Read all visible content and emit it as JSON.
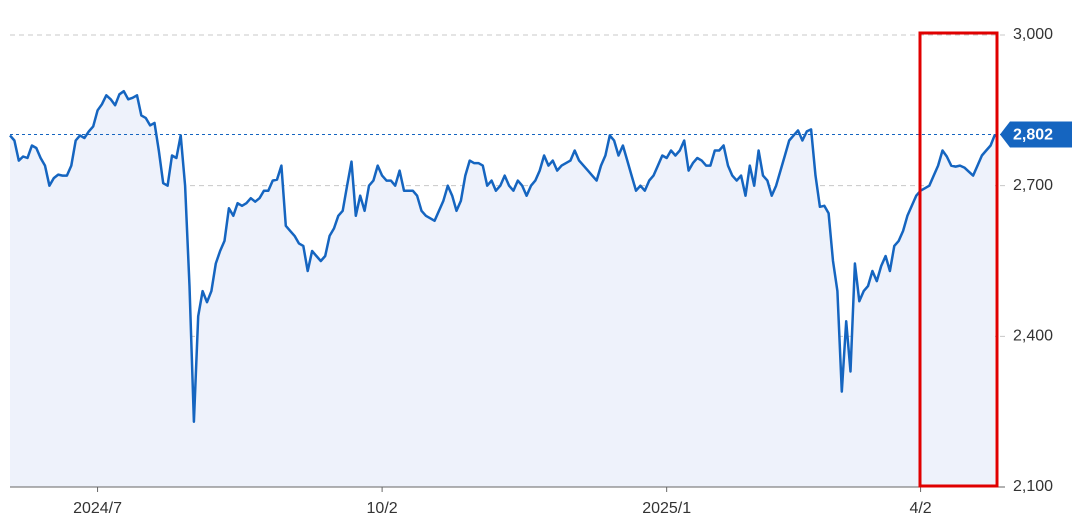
{
  "chart_data": {
    "type": "area",
    "title": "",
    "xlabel": "",
    "ylabel": "",
    "x_tick_labels": [
      "2024/7",
      "10/2",
      "2025/1",
      "4/2"
    ],
    "y_tick_labels": [
      "3,000",
      "2,700",
      "2,400",
      "2,100"
    ],
    "y_ticks": [
      3000,
      2700,
      2400,
      2100
    ],
    "ylim": [
      2100,
      3000
    ],
    "grid": true,
    "current_value": 2802,
    "current_value_label": "2,802",
    "colors": {
      "line": "#1565c0",
      "fill": "#eef2fb",
      "grid": "#c8c8c8",
      "reference_line": "#1565c0",
      "badge": "#1565c0",
      "highlight_box": "#e00000"
    },
    "highlight": {
      "shape": "rectangle",
      "covers": "most recent period (late April to end of series)"
    },
    "series": [
      {
        "values": [
          2800,
          2790,
          2750,
          2758,
          2755,
          2780,
          2775,
          2755,
          2740,
          2700,
          2715,
          2722,
          2720,
          2720,
          2740,
          2790,
          2800,
          2795,
          2808,
          2818,
          2850,
          2862,
          2880,
          2872,
          2860,
          2882,
          2888,
          2872,
          2875,
          2880,
          2840,
          2835,
          2820,
          2825,
          2770,
          2705,
          2700,
          2760,
          2755,
          2800,
          2700,
          2500,
          2230,
          2440,
          2490,
          2468,
          2490,
          2545,
          2570,
          2590,
          2655,
          2640,
          2665,
          2660,
          2665,
          2675,
          2668,
          2675,
          2690,
          2690,
          2710,
          2712,
          2740,
          2620,
          2610,
          2600,
          2585,
          2580,
          2530,
          2570,
          2560,
          2550,
          2560,
          2600,
          2615,
          2640,
          2650,
          2700,
          2748,
          2640,
          2680,
          2650,
          2700,
          2710,
          2740,
          2720,
          2710,
          2710,
          2700,
          2730,
          2690,
          2690,
          2690,
          2680,
          2650,
          2640,
          2635,
          2630,
          2650,
          2670,
          2700,
          2680,
          2650,
          2670,
          2720,
          2750,
          2745,
          2745,
          2740,
          2700,
          2710,
          2690,
          2700,
          2720,
          2700,
          2690,
          2710,
          2700,
          2680,
          2700,
          2710,
          2730,
          2760,
          2740,
          2750,
          2730,
          2740,
          2745,
          2750,
          2770,
          2750,
          2740,
          2730,
          2720,
          2710,
          2740,
          2760,
          2800,
          2790,
          2760,
          2780,
          2750,
          2720,
          2690,
          2700,
          2690,
          2710,
          2720,
          2740,
          2760,
          2755,
          2770,
          2760,
          2770,
          2790,
          2730,
          2745,
          2755,
          2750,
          2740,
          2740,
          2770,
          2770,
          2780,
          2740,
          2720,
          2710,
          2720,
          2680,
          2740,
          2700,
          2770,
          2720,
          2710,
          2680,
          2700,
          2730,
          2760,
          2790,
          2800,
          2810,
          2790,
          2808,
          2812,
          2720,
          2658,
          2660,
          2645,
          2550,
          2490,
          2290,
          2430,
          2330,
          2545,
          2470,
          2490,
          2500,
          2530,
          2510,
          2540,
          2560,
          2530,
          2580,
          2590,
          2610,
          2640,
          2660,
          2680,
          2690,
          2695,
          2700,
          2720,
          2740,
          2770,
          2758,
          2740,
          2738,
          2740,
          2736,
          2728,
          2720,
          2740,
          2760,
          2770,
          2780,
          2802
        ]
      }
    ]
  }
}
